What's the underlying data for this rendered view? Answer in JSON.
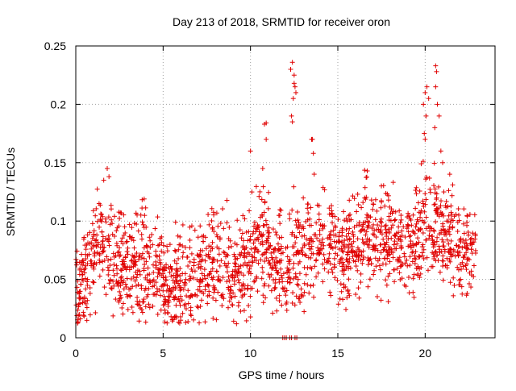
{
  "chart_data": {
    "type": "scatter",
    "title": "Day 213 of 2018, SRMTID for receiver oron",
    "xlabel": "GPS time / hours",
    "ylabel": "SRMTID / TECUs",
    "xlim": [
      0,
      24
    ],
    "ylim": [
      0,
      0.25
    ],
    "xticks": [
      0,
      5,
      10,
      15,
      20
    ],
    "xtick_labels": [
      "0",
      "5",
      "10",
      "15",
      "20"
    ],
    "yticks": [
      0,
      0.05,
      0.1,
      0.15,
      0.2,
      0.25
    ],
    "ytick_labels": [
      "0",
      "0.05",
      "0.1",
      "0.15",
      "0.2",
      "0.25"
    ],
    "grid": true,
    "marker": "+",
    "color": "#e00000",
    "series": [
      {
        "name": "SRMTID",
        "envelope": [
          {
            "x": 0.0,
            "y": 0.045
          },
          {
            "x": 0.5,
            "y": 0.055
          },
          {
            "x": 1.0,
            "y": 0.075
          },
          {
            "x": 1.5,
            "y": 0.08
          },
          {
            "x": 2.0,
            "y": 0.075
          },
          {
            "x": 2.5,
            "y": 0.065
          },
          {
            "x": 3.0,
            "y": 0.06
          },
          {
            "x": 3.5,
            "y": 0.062
          },
          {
            "x": 4.0,
            "y": 0.062
          },
          {
            "x": 4.5,
            "y": 0.06
          },
          {
            "x": 5.0,
            "y": 0.05
          },
          {
            "x": 5.5,
            "y": 0.045
          },
          {
            "x": 6.0,
            "y": 0.045
          },
          {
            "x": 6.5,
            "y": 0.05
          },
          {
            "x": 7.0,
            "y": 0.055
          },
          {
            "x": 7.5,
            "y": 0.06
          },
          {
            "x": 8.0,
            "y": 0.065
          },
          {
            "x": 8.5,
            "y": 0.068
          },
          {
            "x": 9.0,
            "y": 0.055
          },
          {
            "x": 9.5,
            "y": 0.055
          },
          {
            "x": 10.0,
            "y": 0.07
          },
          {
            "x": 10.5,
            "y": 0.085
          },
          {
            "x": 11.0,
            "y": 0.075
          },
          {
            "x": 11.5,
            "y": 0.065
          },
          {
            "x": 12.0,
            "y": 0.065
          },
          {
            "x": 12.5,
            "y": 0.07
          },
          {
            "x": 13.0,
            "y": 0.075
          },
          {
            "x": 13.5,
            "y": 0.08
          },
          {
            "x": 14.0,
            "y": 0.08
          },
          {
            "x": 14.5,
            "y": 0.08
          },
          {
            "x": 15.0,
            "y": 0.075
          },
          {
            "x": 15.5,
            "y": 0.07
          },
          {
            "x": 16.0,
            "y": 0.075
          },
          {
            "x": 16.5,
            "y": 0.08
          },
          {
            "x": 17.0,
            "y": 0.085
          },
          {
            "x": 17.5,
            "y": 0.085
          },
          {
            "x": 18.0,
            "y": 0.085
          },
          {
            "x": 18.5,
            "y": 0.08
          },
          {
            "x": 19.0,
            "y": 0.075
          },
          {
            "x": 19.5,
            "y": 0.085
          },
          {
            "x": 20.0,
            "y": 0.1
          },
          {
            "x": 20.5,
            "y": 0.095
          },
          {
            "x": 21.0,
            "y": 0.09
          },
          {
            "x": 21.5,
            "y": 0.085
          },
          {
            "x": 22.0,
            "y": 0.08
          },
          {
            "x": 22.5,
            "y": 0.075
          },
          {
            "x": 22.9,
            "y": 0.075
          }
        ],
        "spread": 0.022,
        "n_points": 1900,
        "x_range": [
          0,
          22.9
        ],
        "outliers": [
          {
            "x": 1.8,
            "y": 0.145
          },
          {
            "x": 1.9,
            "y": 0.138
          },
          {
            "x": 1.6,
            "y": 0.135
          },
          {
            "x": 10.0,
            "y": 0.16
          },
          {
            "x": 10.8,
            "y": 0.183
          },
          {
            "x": 10.9,
            "y": 0.184
          },
          {
            "x": 10.9,
            "y": 0.17
          },
          {
            "x": 10.7,
            "y": 0.145
          },
          {
            "x": 12.3,
            "y": 0.23
          },
          {
            "x": 12.4,
            "y": 0.236
          },
          {
            "x": 12.5,
            "y": 0.225
          },
          {
            "x": 12.55,
            "y": 0.215
          },
          {
            "x": 12.45,
            "y": 0.205
          },
          {
            "x": 12.35,
            "y": 0.19
          },
          {
            "x": 12.4,
            "y": 0.185
          },
          {
            "x": 12.5,
            "y": 0.218
          },
          {
            "x": 12.6,
            "y": 0.21
          },
          {
            "x": 13.5,
            "y": 0.17
          },
          {
            "x": 13.55,
            "y": 0.17
          },
          {
            "x": 13.6,
            "y": 0.158
          },
          {
            "x": 19.9,
            "y": 0.2
          },
          {
            "x": 20.0,
            "y": 0.21
          },
          {
            "x": 20.1,
            "y": 0.215
          },
          {
            "x": 20.2,
            "y": 0.205
          },
          {
            "x": 20.05,
            "y": 0.19
          },
          {
            "x": 19.95,
            "y": 0.175
          },
          {
            "x": 20.0,
            "y": 0.17
          },
          {
            "x": 20.6,
            "y": 0.233
          },
          {
            "x": 20.65,
            "y": 0.228
          },
          {
            "x": 20.6,
            "y": 0.215
          },
          {
            "x": 20.7,
            "y": 0.2
          },
          {
            "x": 20.8,
            "y": 0.19
          },
          {
            "x": 20.55,
            "y": 0.18
          },
          {
            "x": 20.9,
            "y": 0.16
          },
          {
            "x": 21.0,
            "y": 0.15
          },
          {
            "x": 0.2,
            "y": 0.02
          },
          {
            "x": 9.2,
            "y": 0.012
          },
          {
            "x": 6.0,
            "y": 0.018
          }
        ],
        "zero_points": [
          {
            "x": 11.85,
            "y": 0
          },
          {
            "x": 11.95,
            "y": 0
          },
          {
            "x": 12.05,
            "y": 0
          },
          {
            "x": 12.25,
            "y": 0
          },
          {
            "x": 12.35,
            "y": 0
          },
          {
            "x": 12.55,
            "y": 0
          },
          {
            "x": 12.65,
            "y": 0
          }
        ]
      }
    ]
  }
}
